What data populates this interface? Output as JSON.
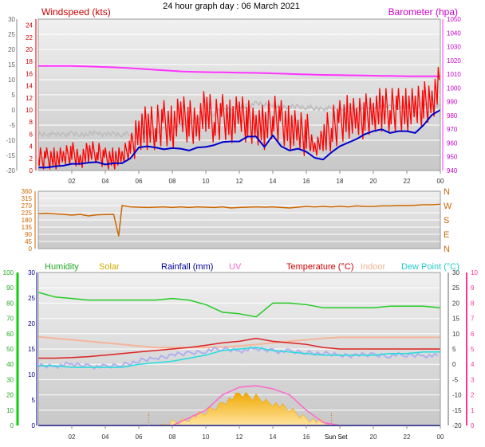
{
  "title": "24 hour graph day : 06 March 2021",
  "colors": {
    "wind": "#ff0000",
    "gust_fill": "#dd0000",
    "avg_wind": "#0000cc",
    "baro": "#ff33ff",
    "outdoor": "#bbbbbb",
    "dir": "#cc6600",
    "humidity": "#22cc22",
    "solar": "#f5b400",
    "rain": "#000099",
    "uv": "#ff66cc",
    "temp": "#dd2222",
    "indoor": "#f5b59a",
    "dew": "#22dddd",
    "hum_axis": "#11cc11",
    "uv_axis": "#ff3399"
  },
  "x_ticks": [
    "02",
    "04",
    "06",
    "08",
    "10",
    "12",
    "14",
    "16",
    "18",
    "20",
    "22",
    "00"
  ],
  "sun_label": "Sun Set",
  "chart_data": [
    {
      "type": "line",
      "title": "Windspeed (kts)",
      "ylabel_right": "Barometer (hpa)",
      "y_left_outer": {
        "ticks": [
          "30",
          "25",
          "20",
          "15",
          "10",
          "5",
          "0",
          "-5",
          "-10",
          "-15",
          "-20"
        ],
        "range": [
          -20,
          30
        ]
      },
      "y_left_inner": {
        "ticks": [
          "24",
          "22",
          "20",
          "18",
          "16",
          "14",
          "12",
          "10",
          "8",
          "6",
          "4",
          "2",
          "0"
        ],
        "range": [
          0,
          25
        ]
      },
      "y_right": {
        "ticks": [
          "1050",
          "1040",
          "1030",
          "1020",
          "1010",
          "1000",
          "990",
          "980",
          "970",
          "960",
          "950",
          "940"
        ],
        "range": [
          940,
          1050
        ]
      },
      "hours": [
        0,
        0.5,
        1,
        1.5,
        2,
        2.5,
        3,
        3.5,
        4,
        4.5,
        5,
        5.5,
        6,
        6.5,
        7,
        7.5,
        8,
        8.5,
        9,
        9.5,
        10,
        10.5,
        11,
        11.5,
        12,
        12.5,
        13,
        13.5,
        14,
        14.5,
        15,
        15.5,
        16,
        16.5,
        17,
        17.5,
        18,
        18.5,
        19,
        19.5,
        20,
        20.5,
        21,
        21.5,
        22,
        22.5,
        23,
        23.5,
        24
      ],
      "series": [
        {
          "name": "Barometer (hpa)",
          "values": [
            1016,
            1016,
            1016,
            1016,
            1016,
            1015.8,
            1015.6,
            1015.4,
            1015.2,
            1015,
            1014.7,
            1014.4,
            1014,
            1013.6,
            1013.2,
            1012.8,
            1012.4,
            1012,
            1011.8,
            1011.6,
            1011.5,
            1011.4,
            1011.3,
            1011.2,
            1011.1,
            1011,
            1010.9,
            1010.8,
            1010.6,
            1010.4,
            1010.2,
            1010,
            1009.8,
            1009.6,
            1009.5,
            1009.4,
            1009.3,
            1009.2,
            1009.1,
            1009,
            1008.9,
            1008.8,
            1008.7,
            1008.6,
            1008.5,
            1008.5,
            1008.5,
            1008.5,
            1008.5
          ]
        },
        {
          "name": "Outdoor",
          "values": [
            -8,
            -8,
            -8,
            -8,
            -8,
            -8,
            -8,
            -7.5,
            -8,
            -8,
            -8,
            -8,
            -8,
            -7.5,
            -7,
            -6.5,
            -6,
            -5,
            -4,
            -3,
            -2,
            -1,
            0,
            0.5,
            1,
            1.5,
            2,
            2,
            1.5,
            1,
            1,
            1,
            1,
            0.5,
            0.5,
            0.5,
            0.5,
            0.5,
            0.5,
            0.5,
            1,
            1,
            1,
            1,
            1,
            1,
            2,
            1.5,
            1
          ]
        },
        {
          "name": "Windspeed (kts)",
          "values": [
            2,
            2,
            2,
            2,
            3,
            2,
            3,
            3,
            2,
            2,
            2,
            4,
            7,
            7,
            7,
            8,
            7,
            9,
            8,
            8,
            10,
            8,
            9,
            8,
            9,
            8,
            8,
            7,
            9,
            8,
            7,
            6,
            6,
            4,
            5,
            7,
            8,
            9,
            8,
            9,
            10,
            10,
            10,
            10,
            10,
            10,
            11,
            12,
            14
          ]
        },
        {
          "name": "Average",
          "values": [
            0.5,
            0.5,
            0.7,
            0.8,
            1.1,
            1.1,
            1.3,
            1.4,
            1,
            1.2,
            1.2,
            2,
            3.8,
            4,
            3.8,
            3.5,
            3.7,
            3.6,
            3.3,
            3.8,
            3.9,
            4.2,
            4.7,
            4.8,
            4.8,
            5.6,
            5.6,
            3.9,
            5.8,
            4,
            3.3,
            3.6,
            3.1,
            2.1,
            1.8,
            3,
            4,
            4.6,
            5.2,
            6,
            6.5,
            6.8,
            6.2,
            6.5,
            6.5,
            6.2,
            7.5,
            9.2,
            10
          ]
        }
      ]
    },
    {
      "type": "line",
      "title": "",
      "y_left": {
        "ticks": [
          "360",
          "315",
          "270",
          "225",
          "180",
          "135",
          "90",
          "45",
          "0"
        ],
        "range": [
          0,
          360
        ]
      },
      "y_right": {
        "ticks": [
          "N",
          "W",
          "S",
          "E",
          "N"
        ]
      },
      "hours": [
        0,
        0.5,
        1,
        1.5,
        2,
        2.5,
        3,
        3.5,
        4,
        4.5,
        4.8,
        5,
        5.5,
        6,
        6.5,
        7,
        7.5,
        8,
        8.5,
        9,
        9.5,
        10,
        10.5,
        11,
        11.5,
        12,
        12.5,
        13,
        13.5,
        14,
        14.5,
        15,
        15.5,
        16,
        16.5,
        17,
        17.5,
        18,
        18.5,
        19,
        19.5,
        20,
        20.5,
        21,
        21.5,
        22,
        22.5,
        23,
        23.5,
        24
      ],
      "series": [
        {
          "name": "Wind direction",
          "values": [
            220,
            222,
            218,
            215,
            210,
            215,
            205,
            212,
            214,
            215,
            80,
            270,
            262,
            260,
            258,
            260,
            262,
            258,
            262,
            258,
            262,
            260,
            258,
            262,
            255,
            258,
            260,
            262,
            260,
            262,
            258,
            255,
            260,
            265,
            262,
            265,
            262,
            266,
            262,
            268,
            265,
            265,
            268,
            268,
            270,
            270,
            272,
            275,
            275,
            278
          ]
        }
      ]
    },
    {
      "type": "line",
      "title": "",
      "legend": [
        "Humidity",
        "Solar",
        "Rainfall (mm)",
        "UV",
        "Temperature (°C)",
        "Indoor",
        "Dew Point (°C)"
      ],
      "y_hum": {
        "ticks": [
          "100",
          "90",
          "80",
          "70",
          "60",
          "50",
          "40",
          "30",
          "20",
          "10",
          "0"
        ],
        "range": [
          0,
          100
        ]
      },
      "y_temp_left": {
        "ticks": [
          "30",
          "25",
          "20",
          "15",
          "10",
          "5",
          "0"
        ],
        "range": [
          0,
          30
        ]
      },
      "y_temp_right": {
        "ticks": [
          "30",
          "25",
          "20",
          "15",
          "10",
          "5",
          "0",
          "-5",
          "-10",
          "-15",
          "-20"
        ],
        "range": [
          -20,
          30
        ]
      },
      "y_uv": {
        "ticks": [
          "10",
          "9",
          "8",
          "7",
          "6",
          "5",
          "4",
          "3",
          "2",
          "1",
          "0"
        ],
        "range": [
          0,
          10
        ]
      },
      "hours": [
        0,
        1,
        2,
        3,
        4,
        5,
        6,
        7,
        8,
        9,
        10,
        11,
        12,
        13,
        14,
        15,
        16,
        17,
        18,
        19,
        20,
        21,
        22,
        23,
        24
      ],
      "series": [
        {
          "name": "Humidity",
          "values": [
            87,
            84,
            83,
            82,
            82,
            82,
            82,
            82,
            83,
            82,
            79,
            74,
            73,
            71,
            80,
            80,
            79,
            77,
            77,
            77,
            77,
            78,
            78,
            78,
            77
          ]
        },
        {
          "name": "Temperature (°C)",
          "values": [
            2,
            2,
            2.2,
            2.5,
            3,
            3.5,
            4,
            4.5,
            5,
            5.5,
            6.2,
            7,
            7.5,
            8.5,
            7.5,
            7,
            6.5,
            5.5,
            5,
            5,
            5,
            5,
            5,
            5,
            5
          ]
        },
        {
          "name": "Indoor",
          "values": [
            9,
            8.5,
            8,
            7.5,
            7,
            6.5,
            6,
            5.5,
            5.5,
            5.5,
            5.5,
            5.7,
            6,
            6.5,
            7,
            7.5,
            8,
            8.5,
            8.8,
            8.8,
            8.8,
            8.8,
            8.8,
            8.8,
            8.8
          ]
        },
        {
          "name": "Dew Point (°C)",
          "values": [
            -0.5,
            -0.5,
            -1,
            -1,
            -1,
            -1,
            0,
            0.5,
            1,
            2,
            3,
            4.5,
            5,
            5.5,
            4.5,
            4,
            3.5,
            3,
            3,
            3,
            3,
            3.5,
            3.5,
            4,
            4
          ]
        },
        {
          "name": "Outdoor",
          "values": [
            -0.5,
            -0.5,
            0,
            -0.5,
            -1,
            0,
            1,
            2,
            3,
            3.5,
            4.5,
            5,
            4.5,
            5,
            4.5,
            4,
            4,
            3.5,
            3,
            3,
            3,
            3,
            3,
            3,
            2.5
          ]
        },
        {
          "name": "Solar",
          "values": [
            0,
            0,
            0,
            0,
            0,
            0,
            0,
            0,
            0.5,
            1.5,
            2.5,
            4.5,
            6,
            5.5,
            4.5,
            3,
            1.5,
            0.5,
            0,
            0,
            0,
            0,
            0,
            0,
            0
          ]
        },
        {
          "name": "UV",
          "values": [
            0,
            0,
            0,
            0,
            0,
            0,
            0,
            0,
            0,
            0.5,
            1,
            2,
            2.5,
            2.6,
            2.4,
            2,
            1,
            0.2,
            0,
            0,
            0,
            0,
            0,
            0,
            0
          ]
        },
        {
          "name": "Rainfall (mm)",
          "values": [
            0,
            0,
            0,
            0,
            0,
            0,
            0,
            0,
            0,
            0,
            0,
            0,
            0,
            0,
            0,
            0,
            0,
            0,
            0,
            0,
            0,
            0,
            0,
            0,
            0
          ]
        }
      ]
    }
  ]
}
